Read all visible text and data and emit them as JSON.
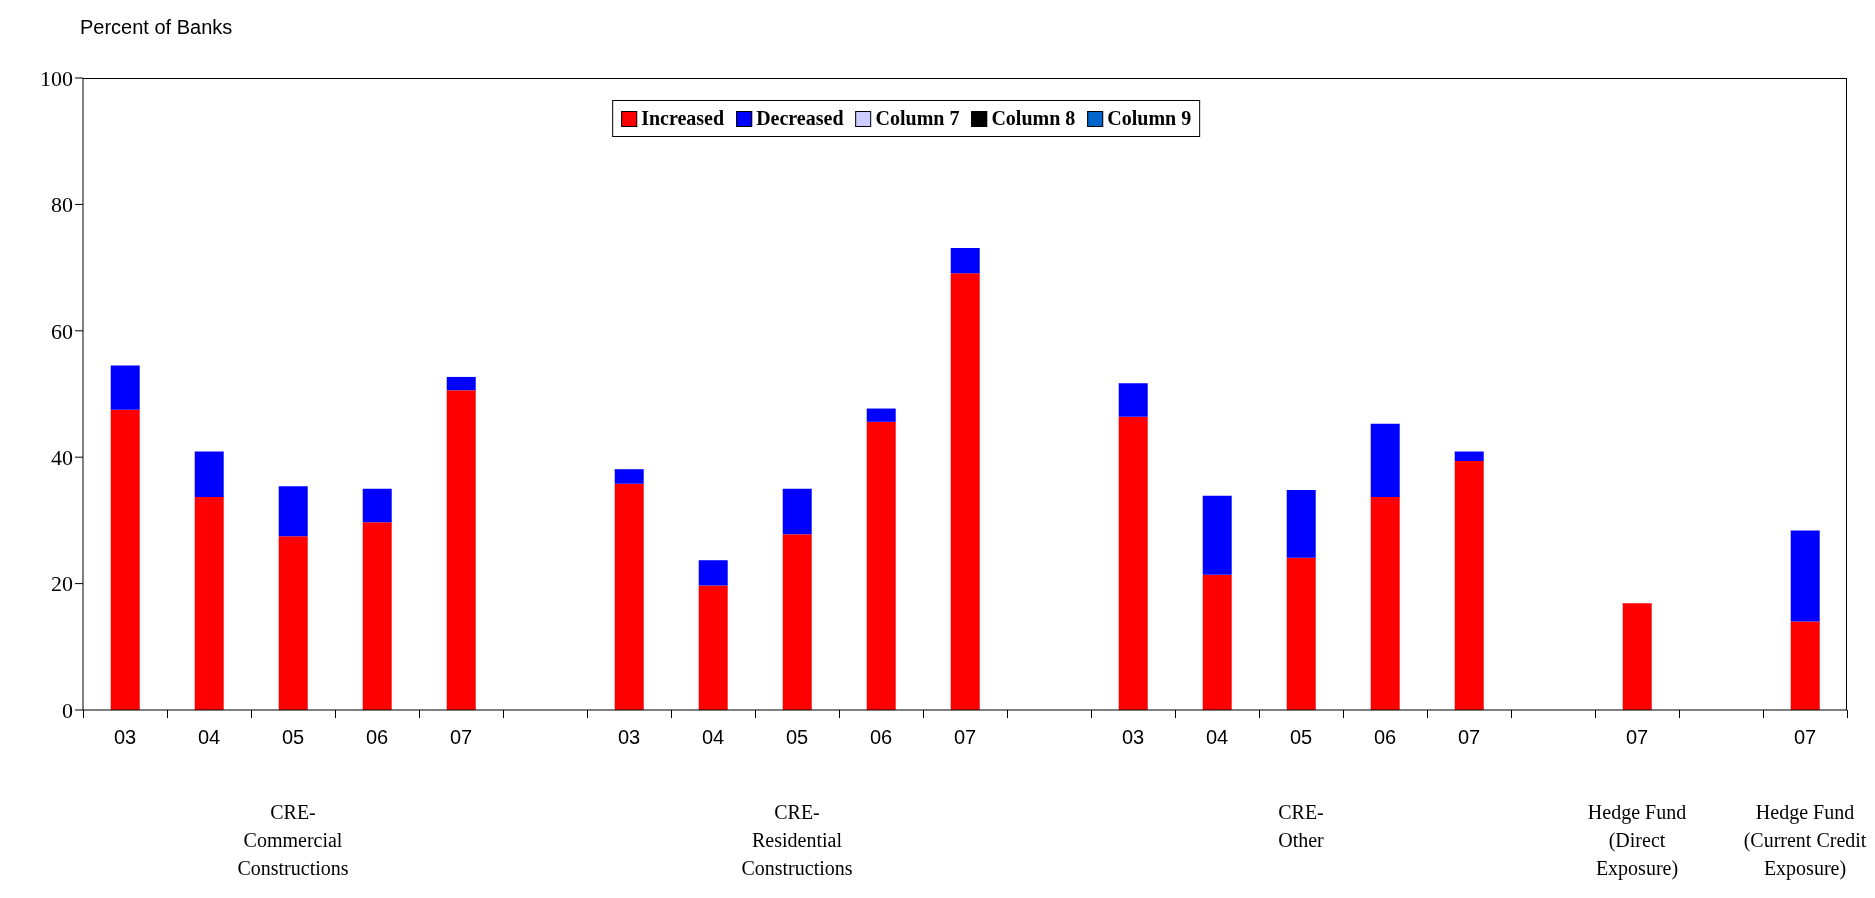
{
  "chart_data": {
    "type": "bar",
    "ylabel": "Percent of Banks",
    "stacked": true,
    "legend": "top",
    "ylim": [
      0,
      100
    ],
    "yticks": [
      0,
      20,
      40,
      60,
      80,
      100
    ],
    "grid": false,
    "categories": [
      "03",
      "04",
      "05",
      "06",
      "07",
      null,
      "03",
      "04",
      "05",
      "06",
      "07",
      null,
      "03",
      "04",
      "05",
      "06",
      "07",
      null,
      "07",
      null,
      "07"
    ],
    "series": [
      {
        "name": "Increased",
        "color": "#ff0000",
        "values": [
          47.5,
          33.7,
          27.5,
          29.7,
          50.6,
          null,
          35.8,
          19.7,
          27.8,
          45.6,
          69.1,
          null,
          46.4,
          21.4,
          24.1,
          33.7,
          39.4,
          null,
          16.9,
          null,
          14.0
        ]
      },
      {
        "name": "Decreased",
        "color": "#0000ff",
        "values": [
          7.0,
          7.2,
          7.9,
          5.3,
          2.1,
          null,
          2.3,
          4.0,
          7.2,
          2.1,
          4.0,
          null,
          5.3,
          12.5,
          10.7,
          11.6,
          1.5,
          null,
          null,
          null,
          14.4
        ]
      },
      {
        "name": "Column 7",
        "color": "#ccccff",
        "values": [
          null,
          null,
          null,
          null,
          null,
          null,
          null,
          null,
          null,
          null,
          null,
          null,
          null,
          null,
          null,
          null,
          null,
          null,
          null,
          null,
          null
        ]
      },
      {
        "name": "Column 8",
        "color": "#000000",
        "values": [
          null,
          null,
          null,
          null,
          null,
          null,
          null,
          null,
          null,
          null,
          null,
          null,
          null,
          null,
          null,
          null,
          null,
          null,
          null,
          null,
          null
        ]
      },
      {
        "name": "Column 9",
        "color": "#0066cc",
        "values": [
          null,
          null,
          null,
          null,
          null,
          null,
          null,
          null,
          null,
          null,
          null,
          null,
          null,
          null,
          null,
          null,
          null,
          null,
          null,
          null,
          null
        ]
      }
    ],
    "annotations": [
      "CRE-\nCommercial\nConstructions",
      "CRE-\nResidential\nConstructions",
      "CRE-\nOther",
      "Hedge Fund\n(Direct\nExposure)",
      "Hedge Fund\n(Current Credit\nExposure)"
    ]
  }
}
